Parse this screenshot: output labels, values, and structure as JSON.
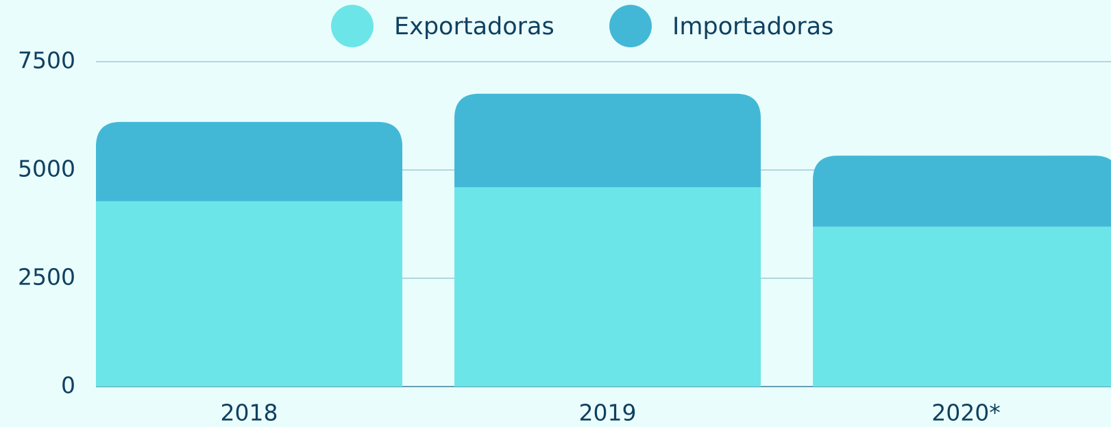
{
  "chart_data": {
    "type": "stacked_bar",
    "categories": [
      "2018",
      "2019",
      "2020*"
    ],
    "series": [
      {
        "name": "Exportadoras",
        "color": "#6ce5e8",
        "values": [
          4280,
          4600,
          3690
        ]
      },
      {
        "name": "Importadoras",
        "color": "#43b8d6",
        "values": [
          1830,
          2160,
          1640
        ]
      }
    ],
    "ylim": [
      0,
      7500
    ],
    "yticks": [
      0,
      2500,
      5000,
      7500
    ],
    "grid": true,
    "legend": "top"
  }
}
